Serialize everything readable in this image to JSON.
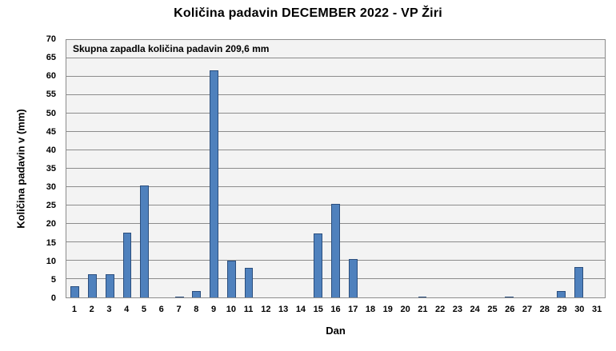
{
  "title": "Količina padavin DECEMBER 2022 - VP Žiri",
  "annotation": "Skupna zapadla količina padavin 209,6 mm",
  "total_precipitation_mm": "209,6",
  "colors": {
    "background": "#FFFFFF",
    "plot_bg": "#F3F3F3",
    "gridline": "#8C8C8C",
    "bar_fill": "#4F81BD",
    "bar_border": "#2A4E7E",
    "text": "#000000"
  },
  "chart_data": {
    "type": "bar",
    "title": "Količina padavin DECEMBER 2022 - VP Žiri",
    "xlabel": "Dan",
    "ylabel": "Količina padavin v (mm)",
    "annotation": "Skupna zapadla količina padavin 209,6 mm",
    "categories": [
      "1",
      "2",
      "3",
      "4",
      "5",
      "6",
      "7",
      "8",
      "9",
      "10",
      "11",
      "12",
      "13",
      "14",
      "15",
      "16",
      "17",
      "18",
      "19",
      "20",
      "21",
      "22",
      "23",
      "24",
      "25",
      "26",
      "27",
      "28",
      "29",
      "30",
      "31"
    ],
    "values": [
      3.1,
      6.3,
      6.4,
      17.6,
      30.5,
      0,
      0.3,
      1.8,
      61.8,
      9.9,
      8.0,
      0,
      0,
      0,
      17.5,
      25.5,
      10.4,
      0,
      0,
      0,
      0.3,
      0,
      0,
      0,
      0,
      0.3,
      0,
      0,
      1.7,
      8.2,
      0
    ],
    "ylim": [
      0,
      70
    ],
    "yticks": [
      0,
      5,
      10,
      15,
      20,
      25,
      30,
      35,
      40,
      45,
      50,
      55,
      60,
      65,
      70
    ],
    "grid": true,
    "legend": "none"
  }
}
